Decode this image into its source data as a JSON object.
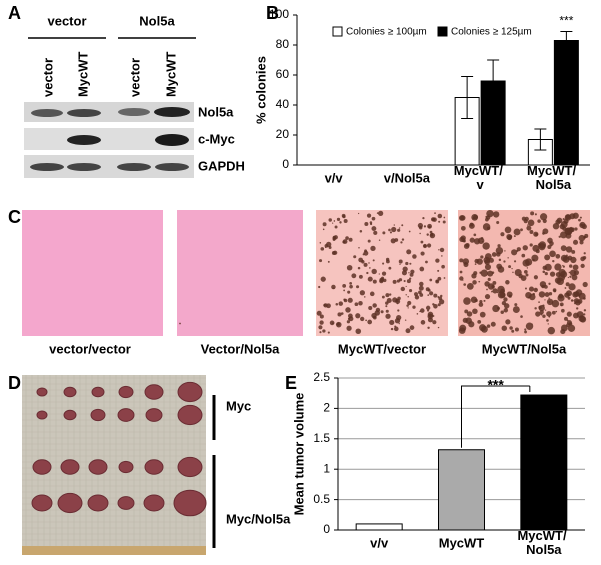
{
  "panel_a": {
    "label": "A",
    "groups": [
      "vector",
      "Nol5a"
    ],
    "lanes": [
      "vector",
      "MycWT",
      "vector",
      "MycWT"
    ],
    "rows": [
      "Nol5a",
      "c-Myc",
      "GAPDH"
    ]
  },
  "panel_c": {
    "label": "C",
    "captions": [
      "vector/vector",
      "Vector/Nol5a",
      "MycWT/vector",
      "MycWT/Nol5a"
    ]
  },
  "panel_d": {
    "label": "D",
    "groups": [
      "Myc",
      "Myc/Nol5a"
    ]
  },
  "chart_data": [
    {
      "type": "bar",
      "panel_label": "B",
      "ylabel": "% colonies",
      "categories": [
        "v/v",
        "v/Nol5a",
        "MycWT/ v",
        "MycWT/ Nol5a"
      ],
      "series": [
        {
          "name": "Colonies ≥ 100µm",
          "color": "#ffffff",
          "values": [
            0,
            0,
            45,
            17
          ],
          "errors": [
            0,
            0,
            14,
            7
          ]
        },
        {
          "name": "Colonies ≥ 125µm",
          "color": "#000000",
          "values": [
            0,
            0,
            56,
            83
          ],
          "errors": [
            0,
            0,
            14,
            6
          ]
        }
      ],
      "annotation": "***",
      "ylim": [
        0,
        100
      ],
      "yticks": [
        0,
        20,
        40,
        60,
        80,
        100
      ],
      "grid": false
    },
    {
      "type": "bar",
      "panel_label": "E",
      "ylabel": "Mean tumor volume",
      "categories": [
        "v/v",
        "MycWT",
        "MycWT/ Nol5a"
      ],
      "values": [
        0.1,
        1.32,
        2.22
      ],
      "colors": [
        "#ffffff",
        "#aaaaaa",
        "#000000"
      ],
      "annotation": "***",
      "ylim": [
        0,
        2.5
      ],
      "yticks": [
        0,
        0.5,
        1,
        1.5,
        2,
        2.5
      ],
      "grid": true
    }
  ]
}
